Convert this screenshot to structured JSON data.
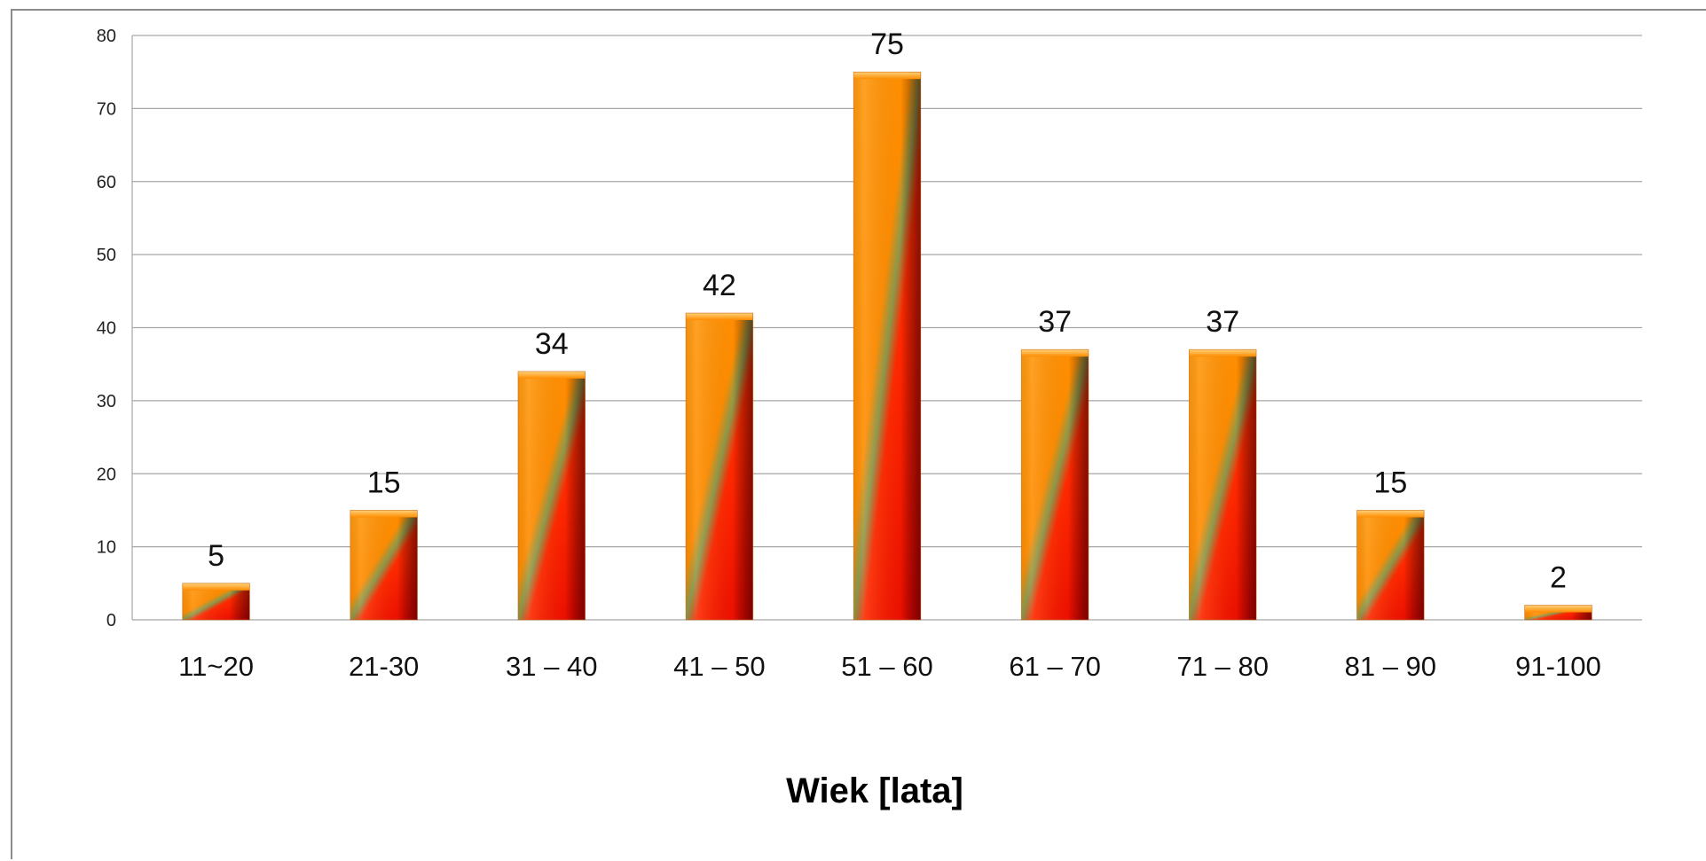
{
  "chart_data": {
    "type": "bar",
    "title": "",
    "xlabel": "Wiek [lata]",
    "ylabel": "",
    "categories": [
      "11~20",
      "21-30",
      "31 – 40",
      "41 – 50",
      "51 – 60",
      "61 – 70",
      "71 – 80",
      "81 – 90",
      "91-100"
    ],
    "values": [
      5,
      15,
      34,
      42,
      75,
      37,
      37,
      15,
      2
    ],
    "data_labels": [
      "5",
      "15",
      "34",
      "42",
      "75",
      "37",
      "37",
      "15",
      "2"
    ],
    "ylim": [
      0,
      80
    ],
    "yticks": [
      0,
      10,
      20,
      30,
      40,
      50,
      60,
      70,
      80
    ],
    "ytick_labels": [
      "0",
      "10",
      "20",
      "30",
      "40",
      "50",
      "60",
      "70",
      "80"
    ],
    "grid": true,
    "legend": "none",
    "colors": {
      "bar_top": "#ff8c00",
      "bar_bottom": "#ff0000",
      "bar_stripe": "#8c9a4a",
      "bar_dark_edge": "#4a0000",
      "gridline": "#a6a6a6",
      "frame": "#8c8c8c"
    }
  }
}
